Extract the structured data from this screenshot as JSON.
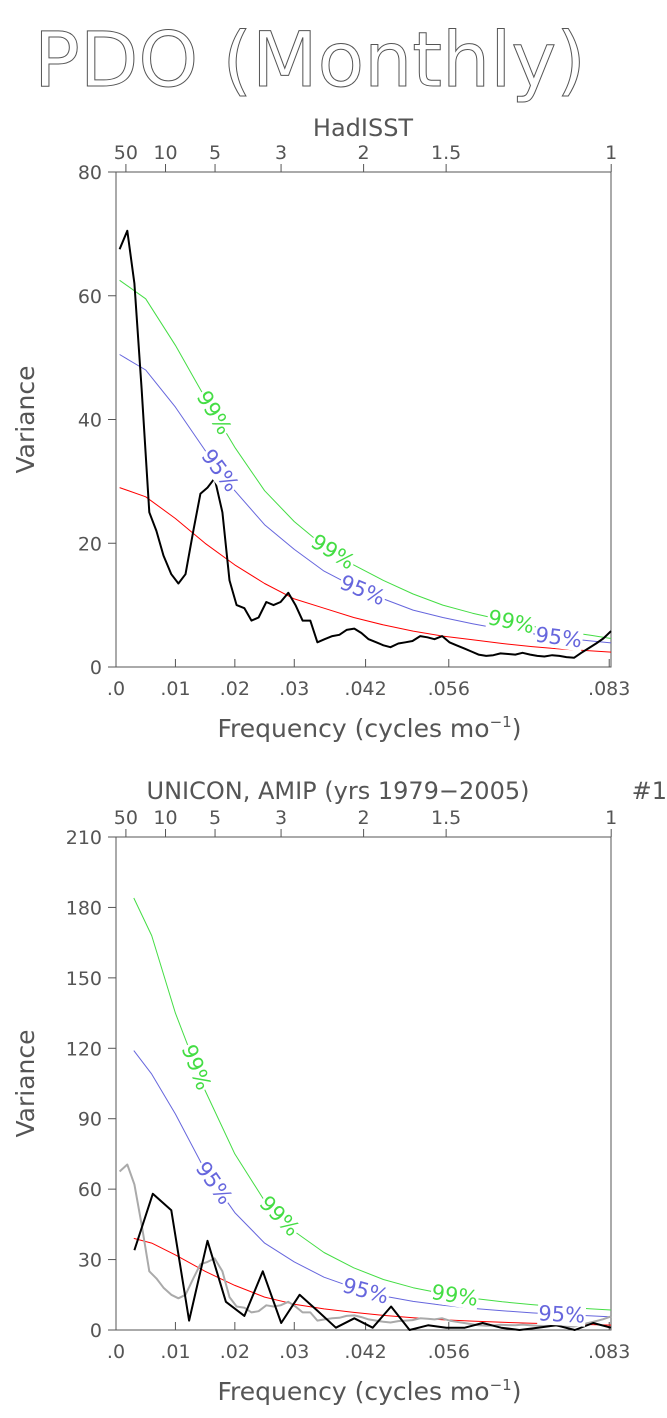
{
  "page_title": "PDO (Monthly)",
  "chart_data": [
    {
      "type": "line",
      "title": "HadISST",
      "panel_number": "",
      "xlabel": "Frequency (cycles mo",
      "xlabel_sup": "−1",
      "ylabel": "Variance",
      "xlim": [
        0,
        0.0833
      ],
      "ylim": [
        0,
        80
      ],
      "yticks": [
        0,
        20,
        40,
        60,
        80
      ],
      "xtick_values": [
        0,
        0.01,
        0.02,
        0.03,
        0.042,
        0.056,
        0.083
      ],
      "xtick_labels": [
        ".0",
        ".01",
        ".02",
        ".03",
        ".042",
        ".056",
        ".083"
      ],
      "period_tick_values": [
        50,
        10,
        5,
        3,
        2,
        1.5,
        1
      ],
      "period_tick_labels": [
        "50",
        "10",
        "5",
        "3",
        "2",
        "1.5",
        "1"
      ],
      "colors": {
        "spectrum": "#000000",
        "red_noise": "#ff0000",
        "sig95": "#6666dd",
        "sig99": "#44dd44",
        "axis": "#555555"
      },
      "labels": [
        {
          "text": "99%",
          "series": "sig99",
          "x": 0.0165
        },
        {
          "text": "95%",
          "series": "sig95",
          "x": 0.0175
        },
        {
          "text": "99%",
          "series": "sig99",
          "x": 0.0365
        },
        {
          "text": "95%",
          "series": "sig95",
          "x": 0.0415
        },
        {
          "text": "99%",
          "series": "sig99",
          "x": 0.0665
        },
        {
          "text": "95%",
          "series": "sig95",
          "x": 0.0745
        }
      ],
      "series": [
        {
          "role": "spectrum",
          "x": [
            0.0006,
            0.0019,
            0.0031,
            0.0043,
            0.0056,
            0.0068,
            0.008,
            0.0093,
            0.0105,
            0.0117,
            0.013,
            0.0142,
            0.0154,
            0.0166,
            0.0179,
            0.0191,
            0.0203,
            0.0216,
            0.0228,
            0.024,
            0.0253,
            0.0265,
            0.0277,
            0.029,
            0.0302,
            0.0314,
            0.0327,
            0.0339,
            0.0351,
            0.0364,
            0.0376,
            0.0388,
            0.0401,
            0.0413,
            0.0425,
            0.0438,
            0.045,
            0.0462,
            0.0475,
            0.0487,
            0.0499,
            0.0512,
            0.0524,
            0.0536,
            0.0549,
            0.0561,
            0.0573,
            0.0586,
            0.0598,
            0.061,
            0.0623,
            0.0635,
            0.0647,
            0.066,
            0.0672,
            0.0684,
            0.0697,
            0.0709,
            0.0721,
            0.0734,
            0.0746,
            0.0758,
            0.0771,
            0.0783,
            0.0795,
            0.0808,
            0.082,
            0.0833
          ],
          "values": [
            67.5,
            70.5,
            62,
            45,
            25,
            22,
            18,
            15,
            13.5,
            15,
            22,
            28,
            29,
            30.5,
            25,
            14,
            10,
            9.5,
            7.5,
            8,
            10.5,
            10,
            10.5,
            12,
            10,
            7.5,
            7.5,
            4,
            4.5,
            5,
            5.2,
            6,
            6.2,
            5.5,
            4.5,
            4,
            3.5,
            3.2,
            3.8,
            4,
            4.2,
            5,
            4.8,
            4.5,
            5,
            4,
            3.5,
            3,
            2.5,
            2,
            1.8,
            1.9,
            2.2,
            2.1,
            2,
            2.3,
            2,
            1.8,
            1.7,
            1.9,
            1.8,
            1.6,
            1.5,
            2.3,
            3,
            3.8,
            4.6,
            5.8
          ]
        },
        {
          "role": "red_noise",
          "x": [
            0.0006,
            0.005,
            0.01,
            0.015,
            0.02,
            0.025,
            0.03,
            0.035,
            0.04,
            0.045,
            0.05,
            0.055,
            0.06,
            0.065,
            0.07,
            0.075,
            0.08,
            0.0833
          ],
          "values": [
            29,
            27.5,
            24,
            20,
            16.5,
            13.5,
            11,
            9.5,
            8,
            6.8,
            5.8,
            5,
            4.4,
            3.8,
            3.3,
            2.9,
            2.6,
            2.4
          ]
        },
        {
          "role": "sig95",
          "x": [
            0.0006,
            0.005,
            0.01,
            0.015,
            0.02,
            0.025,
            0.03,
            0.035,
            0.04,
            0.045,
            0.05,
            0.055,
            0.06,
            0.065,
            0.07,
            0.075,
            0.08,
            0.0833
          ],
          "values": [
            50.5,
            48,
            42,
            35,
            28.5,
            23,
            19,
            15.5,
            13,
            11,
            9.2,
            8,
            7,
            6.1,
            5.4,
            4.7,
            4.2,
            3.9
          ]
        },
        {
          "role": "sig99",
          "x": [
            0.0006,
            0.005,
            0.01,
            0.015,
            0.02,
            0.025,
            0.03,
            0.035,
            0.04,
            0.045,
            0.05,
            0.055,
            0.06,
            0.065,
            0.07,
            0.075,
            0.08,
            0.0833
          ],
          "values": [
            62.5,
            59.5,
            52,
            43.5,
            35.5,
            28.5,
            23.5,
            19.5,
            16.5,
            14,
            11.8,
            10,
            8.7,
            7.6,
            6.6,
            5.8,
            5.1,
            4.6
          ]
        }
      ]
    },
    {
      "type": "line",
      "title": "UNICON, AMIP (yrs 1979−2005)",
      "panel_number": "#1",
      "xlabel": "Frequency (cycles mo",
      "xlabel_sup": "−1",
      "ylabel": "Variance",
      "xlim": [
        0,
        0.0833
      ],
      "ylim": [
        0,
        210
      ],
      "yticks": [
        0,
        30,
        60,
        90,
        120,
        150,
        180,
        210
      ],
      "xtick_values": [
        0,
        0.01,
        0.02,
        0.03,
        0.042,
        0.056,
        0.083
      ],
      "xtick_labels": [
        ".0",
        ".01",
        ".02",
        ".03",
        ".042",
        ".056",
        ".083"
      ],
      "period_tick_values": [
        50,
        10,
        5,
        3,
        2,
        1.5,
        1
      ],
      "period_tick_labels": [
        "50",
        "10",
        "5",
        "3",
        "2",
        "1.5",
        "1"
      ],
      "colors": {
        "spectrum": "#000000",
        "obs_spectrum": "#aaaaaa",
        "red_noise": "#ff0000",
        "sig95": "#6666dd",
        "sig99": "#44dd44",
        "axis": "#555555"
      },
      "labels": [
        {
          "text": "99%",
          "series": "sig99",
          "x": 0.0135
        },
        {
          "text": "95%",
          "series": "sig95",
          "x": 0.0165
        },
        {
          "text": "99%",
          "series": "sig99",
          "x": 0.0275
        },
        {
          "text": "95%",
          "series": "sig95",
          "x": 0.042
        },
        {
          "text": "99%",
          "series": "sig99",
          "x": 0.057
        },
        {
          "text": "95%",
          "series": "sig95",
          "x": 0.075
        }
      ],
      "series": [
        {
          "role": "obs_spectrum",
          "x": [
            0.0006,
            0.0019,
            0.0031,
            0.0043,
            0.0056,
            0.0068,
            0.008,
            0.0093,
            0.0105,
            0.0117,
            0.013,
            0.0142,
            0.0154,
            0.0166,
            0.0179,
            0.0191,
            0.0203,
            0.0216,
            0.0228,
            0.024,
            0.0253,
            0.0265,
            0.0277,
            0.029,
            0.0302,
            0.0314,
            0.0327,
            0.0339,
            0.0351,
            0.0364,
            0.0376,
            0.0388,
            0.0401,
            0.0413,
            0.0425,
            0.0438,
            0.045,
            0.0462,
            0.0475,
            0.0487,
            0.0499,
            0.0512,
            0.0524,
            0.0536,
            0.0549,
            0.0561,
            0.0573,
            0.0586,
            0.0598,
            0.061,
            0.0623,
            0.0635,
            0.0647,
            0.066,
            0.0672,
            0.0684,
            0.0697,
            0.0709,
            0.0721,
            0.0734,
            0.0746,
            0.0758,
            0.0771,
            0.0783,
            0.0795,
            0.0808,
            0.082,
            0.0833
          ],
          "values": [
            67.5,
            70.5,
            62,
            45,
            25,
            22,
            18,
            15,
            13.5,
            15,
            22,
            28,
            29,
            30.5,
            25,
            14,
            10,
            9.5,
            7.5,
            8,
            10.5,
            10,
            10.5,
            12,
            10,
            7.5,
            7.5,
            4,
            4.5,
            5,
            5.2,
            6,
            6.2,
            5.5,
            4.5,
            4,
            3.5,
            3.2,
            3.8,
            4,
            4.2,
            5,
            4.8,
            4.5,
            5,
            4,
            3.5,
            3,
            2.5,
            2,
            1.8,
            1.9,
            2.2,
            2.1,
            2,
            2.3,
            2,
            1.8,
            1.7,
            1.9,
            1.8,
            1.6,
            1.5,
            2.3,
            3,
            3.8,
            4.6,
            5.8
          ]
        },
        {
          "role": "spectrum",
          "x": [
            0.0031,
            0.0062,
            0.0093,
            0.0123,
            0.0154,
            0.0185,
            0.0216,
            0.0247,
            0.0278,
            0.0309,
            0.034,
            0.037,
            0.0401,
            0.0432,
            0.0463,
            0.0494,
            0.0525,
            0.0556,
            0.0587,
            0.0617,
            0.0648,
            0.0679,
            0.071,
            0.0741,
            0.0772,
            0.0803,
            0.0833
          ],
          "values": [
            34,
            58,
            51,
            4,
            38,
            12,
            6,
            25,
            3,
            15,
            8,
            1,
            5,
            1,
            10,
            0,
            2,
            1,
            1,
            3,
            1,
            0,
            1,
            2,
            0,
            3,
            1
          ]
        },
        {
          "role": "red_noise",
          "x": [
            0.003,
            0.006,
            0.01,
            0.015,
            0.02,
            0.025,
            0.03,
            0.035,
            0.04,
            0.045,
            0.05,
            0.055,
            0.06,
            0.065,
            0.07,
            0.075,
            0.08,
            0.0833
          ],
          "values": [
            39,
            37,
            32,
            25,
            19,
            14,
            11,
            9,
            7.5,
            6.2,
            5.2,
            4.4,
            3.8,
            3.3,
            2.9,
            2.6,
            2.3,
            2.1
          ]
        },
        {
          "role": "sig95",
          "x": [
            0.003,
            0.006,
            0.01,
            0.015,
            0.02,
            0.025,
            0.03,
            0.035,
            0.04,
            0.045,
            0.05,
            0.055,
            0.06,
            0.065,
            0.07,
            0.075,
            0.08,
            0.0833
          ],
          "values": [
            119,
            109,
            92,
            68,
            50,
            37,
            29,
            22.5,
            18,
            14.5,
            12.2,
            10.5,
            9.2,
            8.2,
            7.3,
            6.6,
            6,
            5.6
          ]
        },
        {
          "role": "sig99",
          "x": [
            0.003,
            0.006,
            0.01,
            0.015,
            0.02,
            0.025,
            0.03,
            0.035,
            0.04,
            0.045,
            0.05,
            0.055,
            0.06,
            0.065,
            0.07,
            0.075,
            0.08,
            0.0833
          ],
          "values": [
            184,
            168,
            135,
            102,
            75,
            55,
            42,
            33,
            26.5,
            21.5,
            18,
            15.5,
            13.5,
            12,
            10.8,
            9.8,
            9,
            8.5
          ]
        }
      ]
    }
  ]
}
